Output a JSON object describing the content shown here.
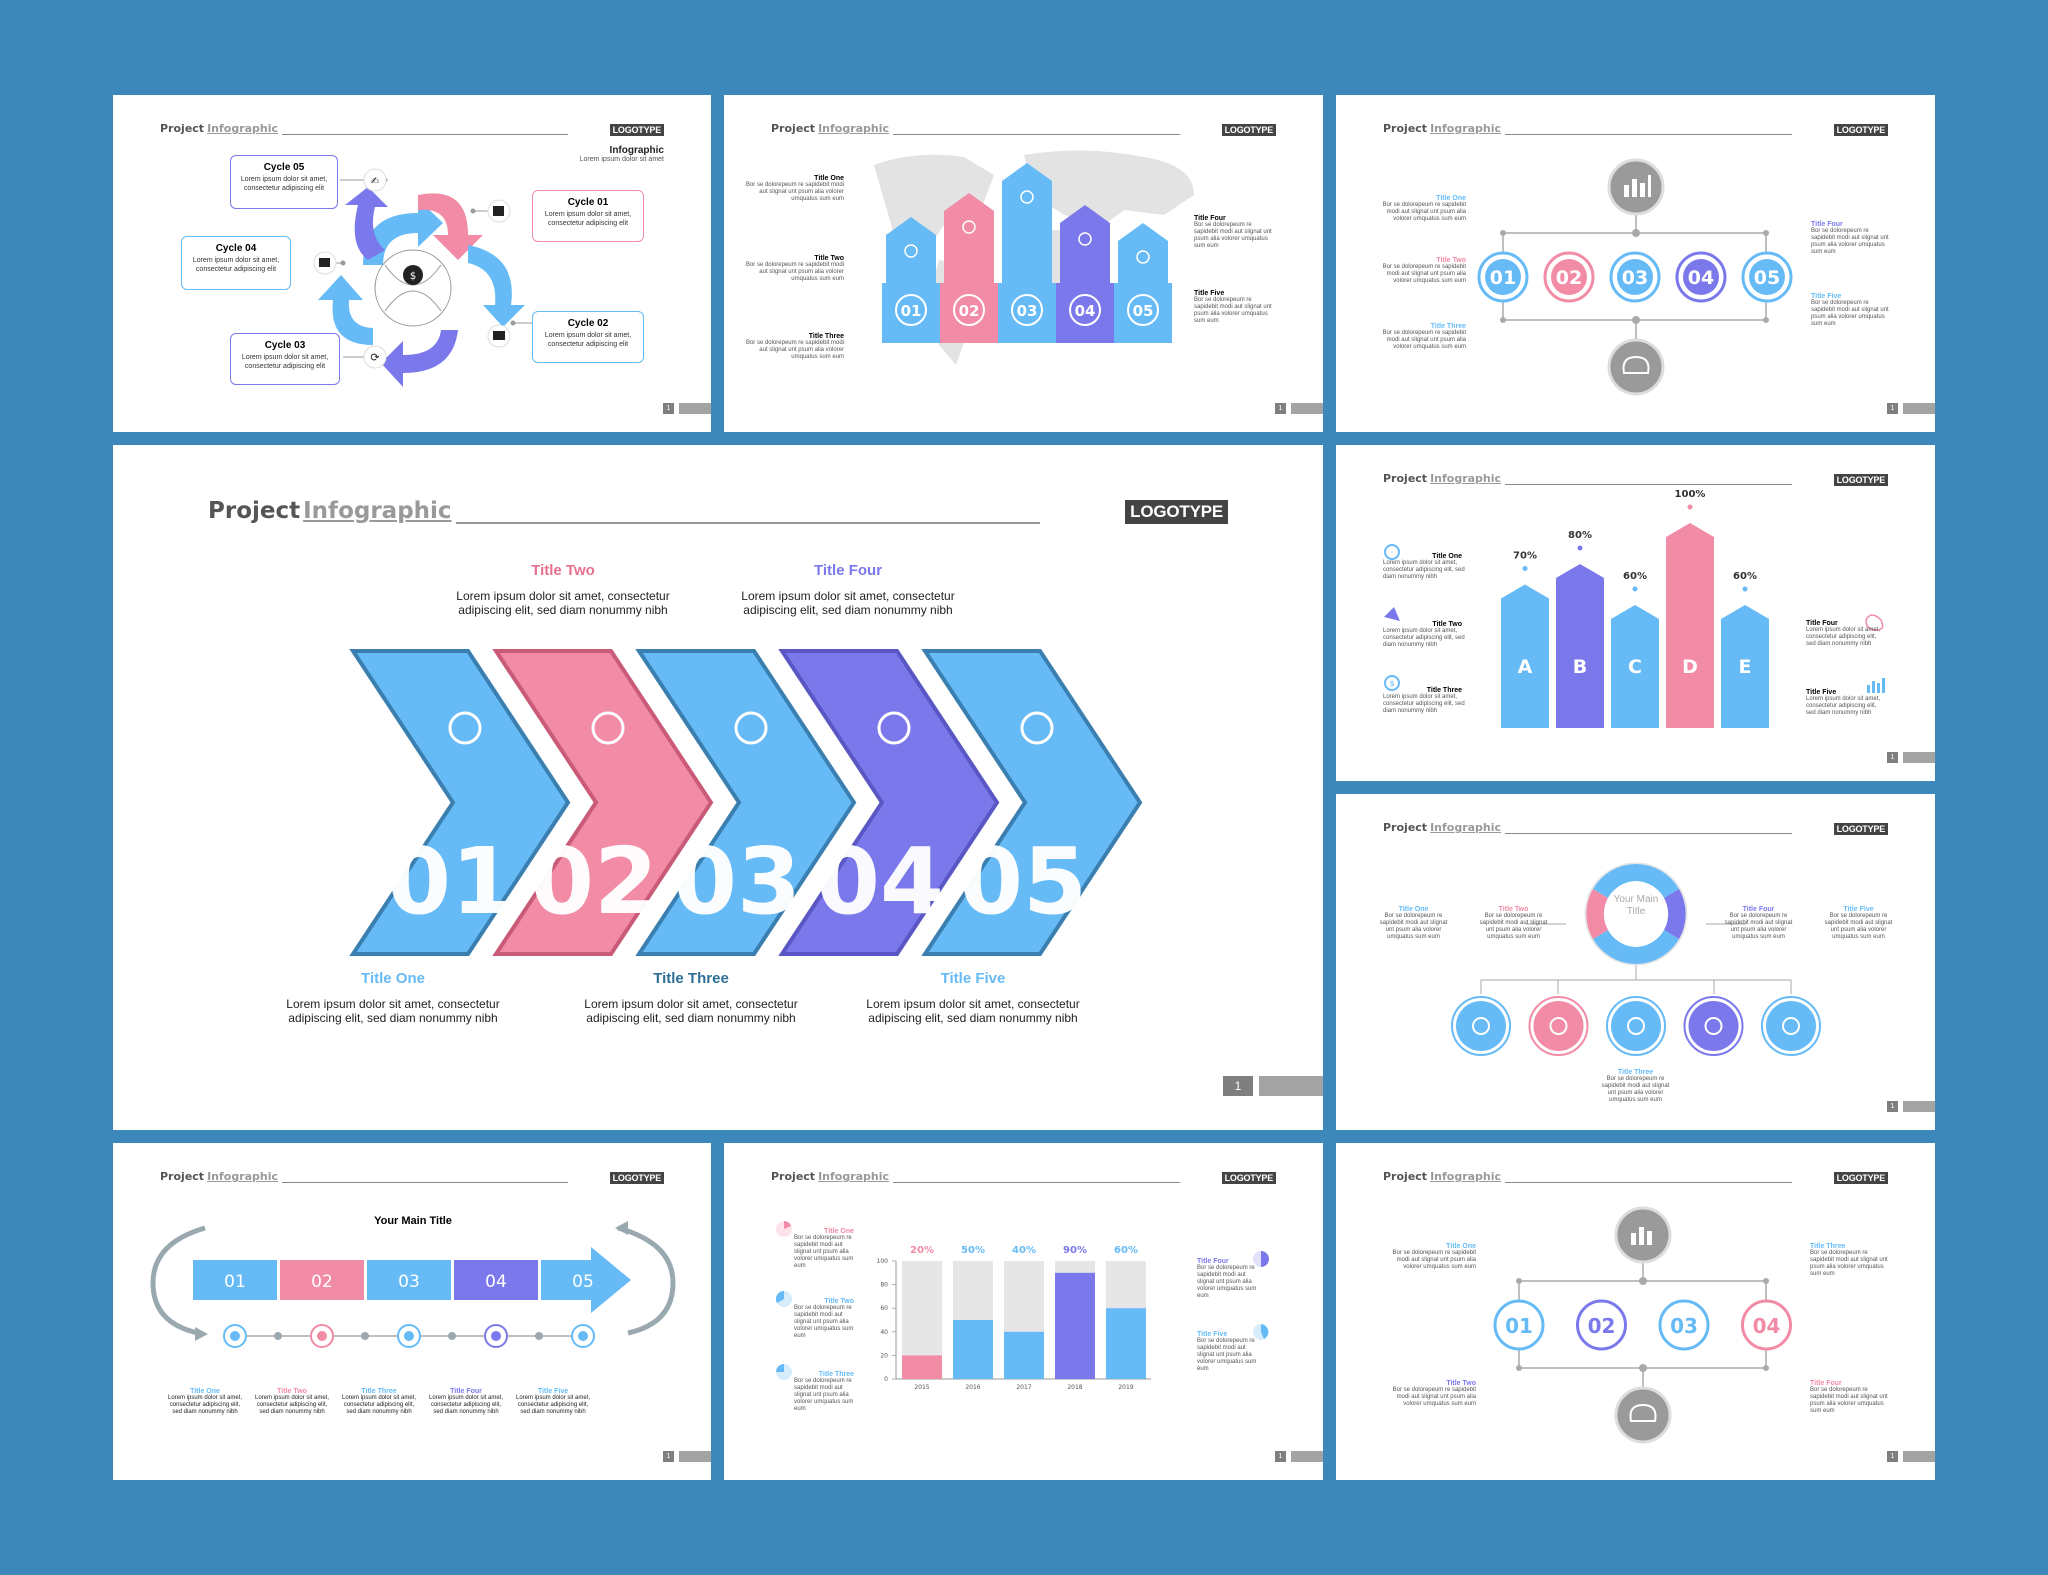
{
  "brand": {
    "word1": "Project",
    "word2": "Infographic",
    "logotype": "LOGOTYPE",
    "page_number": "1"
  },
  "colors": {
    "blue": "#66bbf7",
    "pink": "#f28ba5",
    "purple": "#7b78ec",
    "gray": "#9a9a9a",
    "background": "#3c88bb"
  },
  "lorem": {
    "short": "Lorem ipsum dolor sit amet, consectetur adipiscing elit",
    "long": "Lorem ipsum dolor sit amet, consectetur adipiscing elit, sed diam nonummy nibh",
    "tiny": "Bor se dolorepeum re sapidebit modi aut slignat unt psum alia volorer umquatus sum eum"
  },
  "slide1": {
    "cycles": [
      "Cycle 05",
      "Cycle 01",
      "Cycle 04",
      "Cycle 02",
      "Cycle 03"
    ],
    "info_title": "Infographic",
    "info_sub": "Lorem ipsum dolor sit amet",
    "icons": [
      "handshake-icon",
      "pocket-icon",
      "wallet-icon",
      "wallet-icon",
      "chart-icon",
      "money-bag-icon"
    ]
  },
  "slide2": {
    "titles": [
      "Title One",
      "Title Two",
      "Title Three",
      "Title Four",
      "Title Five"
    ],
    "numbers": [
      "01",
      "02",
      "03",
      "04",
      "05"
    ],
    "icons": [
      "stopwatch-icon",
      "puzzle-icon",
      "bulb-icon",
      "bar-chart-icon",
      "dollar-icon"
    ]
  },
  "slide3": {
    "titles": [
      "Title One",
      "Title Two",
      "Title Three",
      "Title Four",
      "Title Five"
    ],
    "numbers": [
      "01",
      "02",
      "03",
      "04",
      "05"
    ],
    "icons": [
      "bar-chart-icon",
      "brain-icon"
    ]
  },
  "main": {
    "titles": [
      "Title One",
      "Title Two",
      "Title Three",
      "Title Four",
      "Title Five"
    ],
    "numbers": [
      "01",
      "02",
      "03",
      "04",
      "05"
    ],
    "icons": [
      "stopwatch-icon",
      "puzzle-icon",
      "bulb-icon",
      "bar-chart-icon",
      "dollar-icon"
    ]
  },
  "slide5": {
    "chart_data": {
      "type": "bar",
      "categories": [
        "A",
        "B",
        "C",
        "D",
        "E"
      ],
      "values": [
        70,
        80,
        60,
        100,
        60
      ],
      "value_labels": [
        "70%",
        "80%",
        "60%",
        "100%",
        "60%"
      ],
      "colors": [
        "#66bbf7",
        "#7b78ec",
        "#66bbf7",
        "#f28ba5",
        "#66bbf7"
      ]
    },
    "titles": [
      "Title One",
      "Title Two",
      "Title Three",
      "Title Four",
      "Title Five"
    ]
  },
  "slide6": {
    "center": "Your Main Title",
    "titles": [
      "Title One",
      "Title Two",
      "Title Three",
      "Title Four",
      "Title Five"
    ],
    "icons": [
      "puzzle-icon",
      "brain-icon",
      "bulb-icon",
      "target-icon",
      "bar-chart-icon"
    ]
  },
  "slide7": {
    "main_title": "Your Main Title",
    "numbers": [
      "01",
      "02",
      "03",
      "04",
      "05"
    ],
    "titles": [
      "Title One",
      "Title Two",
      "Title Three",
      "Title Four",
      "Title Five"
    ],
    "icons": [
      "stopwatch-icon",
      "bulb-icon",
      "dollar-icon",
      "puzzle-icon",
      "bar-chart-icon"
    ]
  },
  "slide8": {
    "chart_data": {
      "type": "bar",
      "categories": [
        "2015",
        "2016",
        "2017",
        "2018",
        "2019"
      ],
      "values": [
        20,
        50,
        40,
        90,
        60
      ],
      "value_labels": [
        "20%",
        "50%",
        "40%",
        "90%",
        "60%"
      ],
      "ylim": [
        0,
        100
      ],
      "yticks": [
        0,
        20,
        40,
        60,
        80,
        100
      ],
      "colors": [
        "#f28ba5",
        "#66bbf7",
        "#66bbf7",
        "#7b78ec",
        "#66bbf7"
      ]
    },
    "titles": [
      "Title One",
      "Title Two",
      "Title Three",
      "Title Four",
      "Title Five"
    ]
  },
  "slide9": {
    "titles": [
      "Title One",
      "Title Two",
      "Title Three",
      "Title Four"
    ],
    "numbers": [
      "01",
      "02",
      "03",
      "04"
    ],
    "icons": [
      "bar-chart-icon",
      "brain-icon"
    ]
  }
}
